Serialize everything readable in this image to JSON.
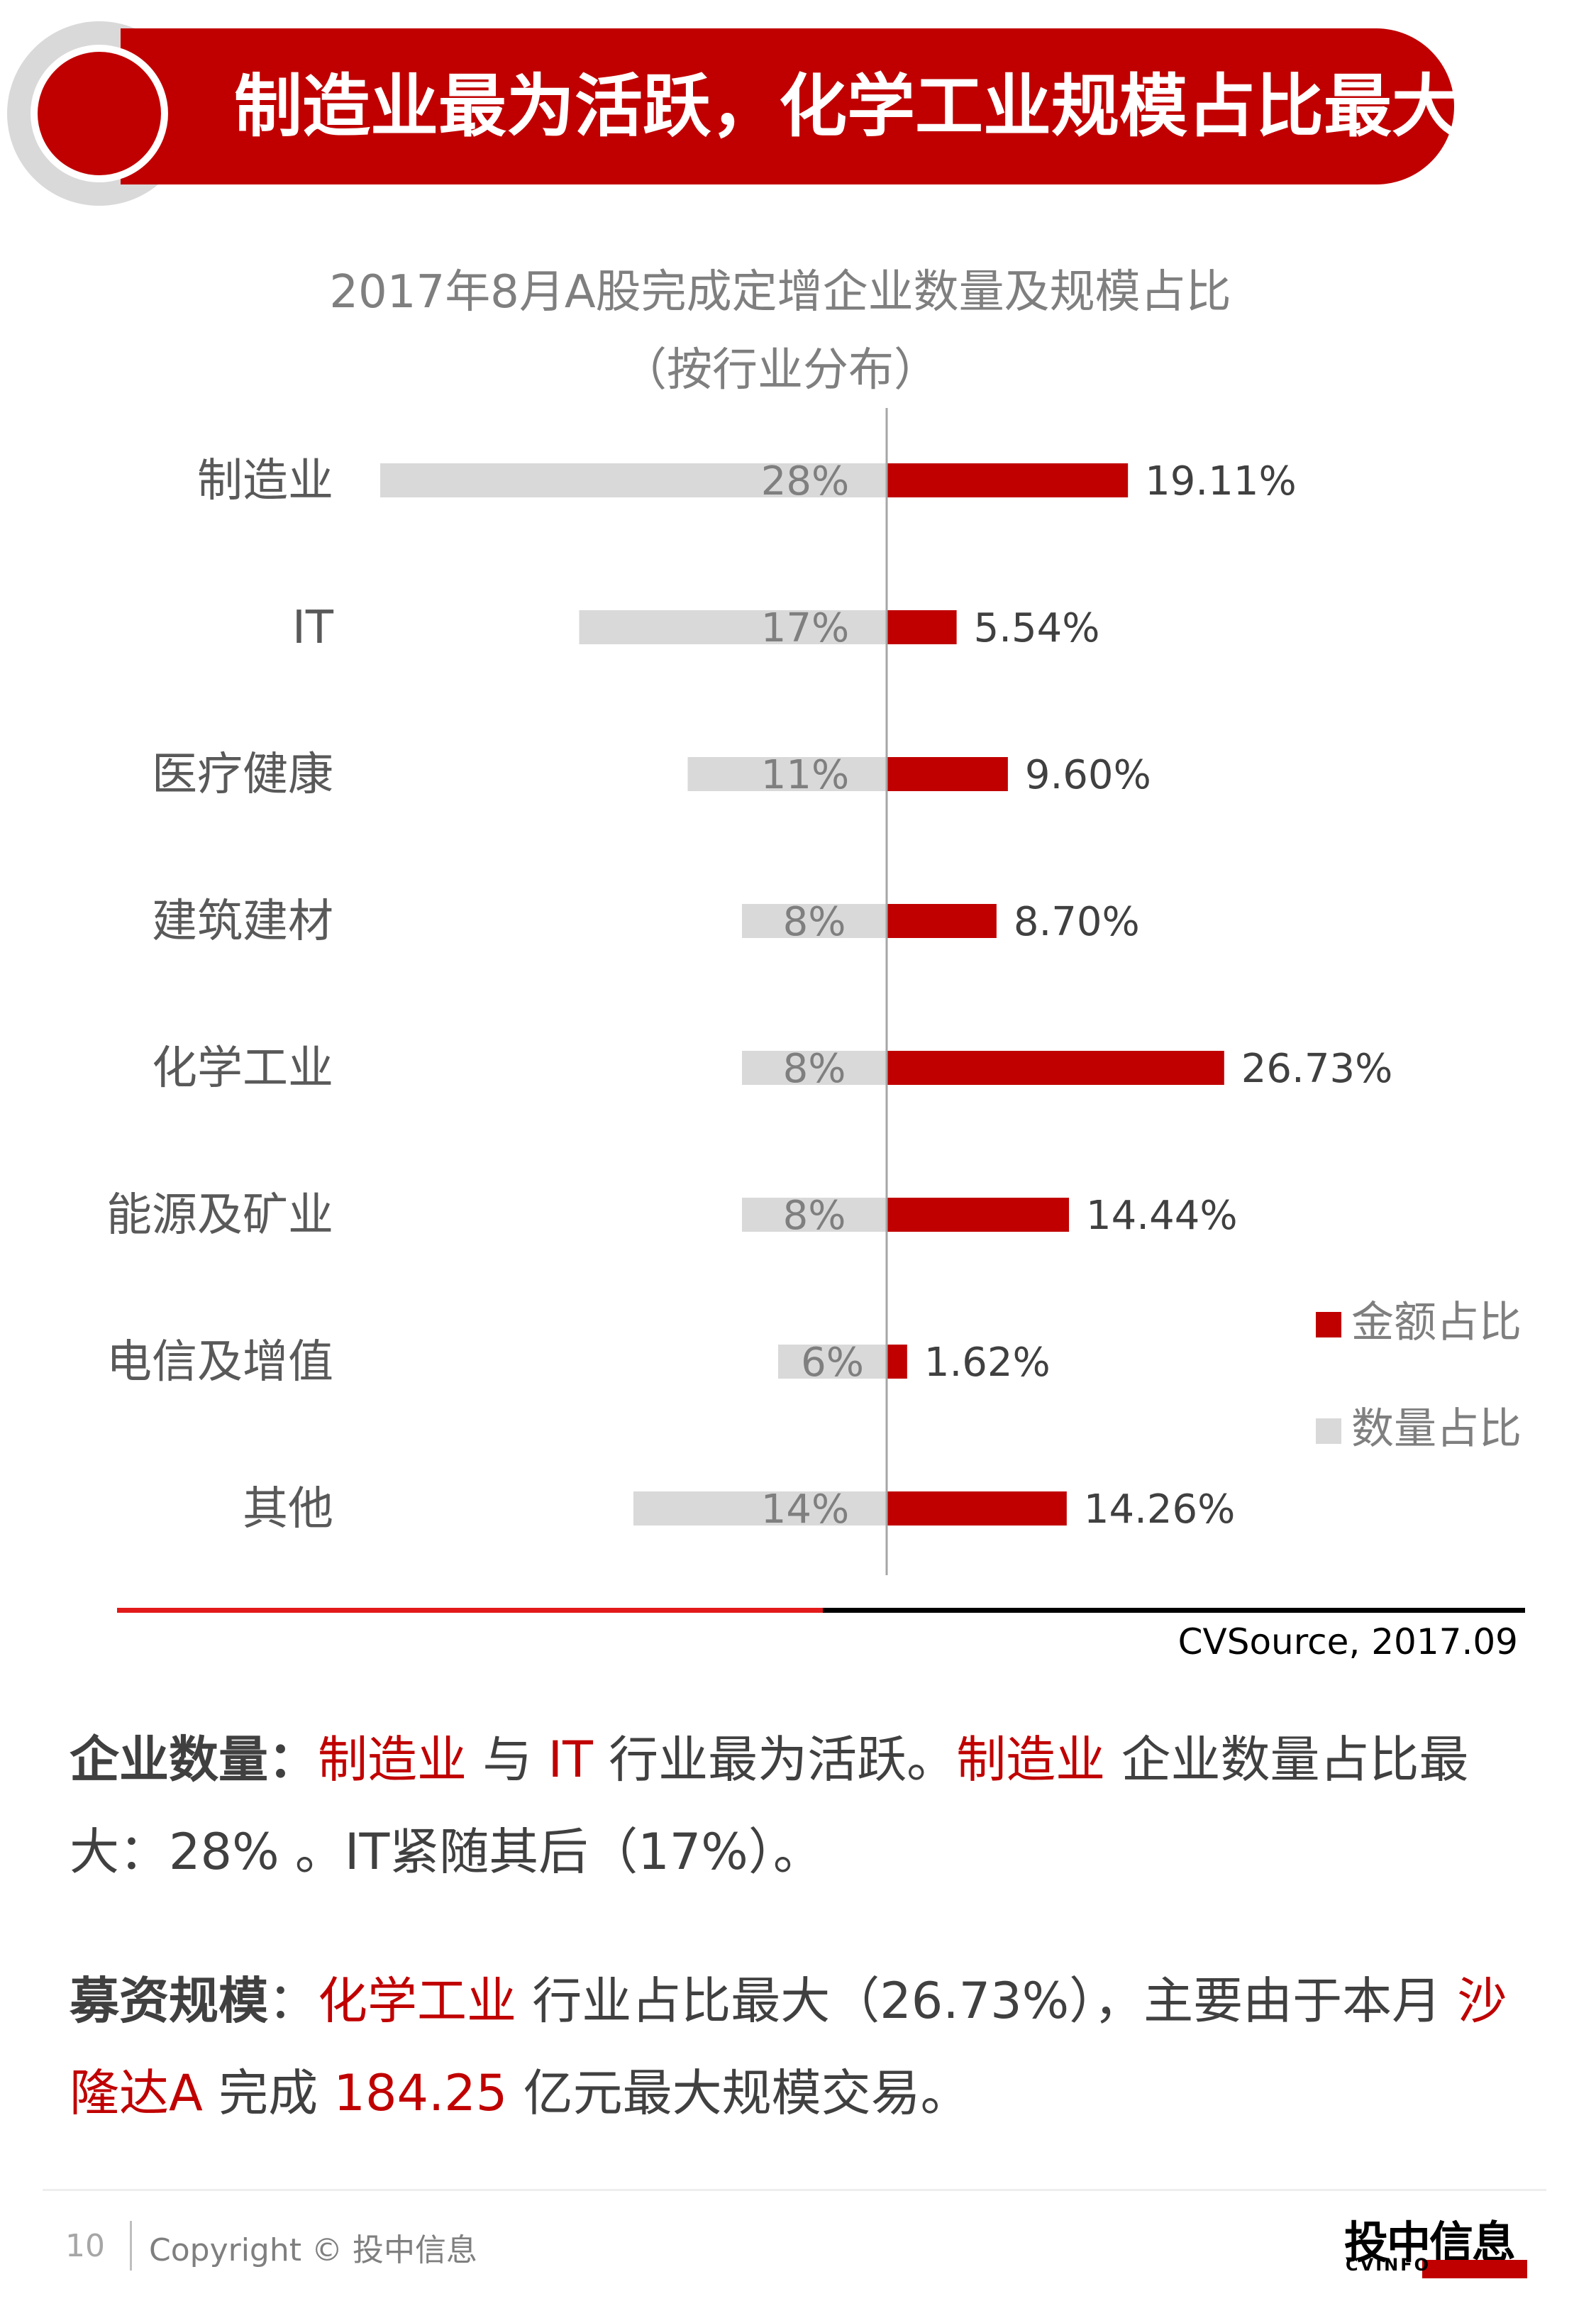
{
  "banner": {
    "title": "制造业最为活跃，化学工业规模占比最大"
  },
  "chart_title": {
    "line1": "2017年8月A股完成定增企业数量及规模占比",
    "line2": "（按行业分布）"
  },
  "chart_data": {
    "type": "bar",
    "orientation": "horizontal-diverging",
    "categories": [
      "制造业",
      "IT",
      "医疗健康",
      "建筑建材",
      "化学工业",
      "能源及矿业",
      "电信及增值",
      "其他"
    ],
    "series": [
      {
        "name": "数量占比",
        "values": [
          28,
          17,
          11,
          8,
          8,
          8,
          6,
          14
        ],
        "labels": [
          "28%",
          "17%",
          "11%",
          "8%",
          "8%",
          "8%",
          "6%",
          "14%"
        ],
        "color": "#d9d9d9",
        "direction": "left"
      },
      {
        "name": "金额占比",
        "values": [
          19.11,
          5.54,
          9.6,
          8.7,
          26.73,
          14.44,
          1.62,
          14.26
        ],
        "labels": [
          "19.11%",
          "5.54%",
          "9.60%",
          "8.70%",
          "26.73%",
          "14.44%",
          "1.62%",
          "14.26%"
        ],
        "color": "#c00000",
        "direction": "right"
      }
    ],
    "legend": [
      "金额占比",
      "数量占比"
    ],
    "legend_position": "right",
    "source": "CVSource, 2017.09"
  },
  "colors": {
    "accent": "#c00000",
    "gray_bar": "#d9d9d9",
    "text": "#595959"
  },
  "legend": {
    "amount": "金额占比",
    "count": "数量占比"
  },
  "source": "CVSource, 2017.09",
  "para1": {
    "label": "企业数量：",
    "hl1": "制造业",
    "t1": " 与 ",
    "hl2": "IT",
    "t2": " 行业最为活跃。",
    "hl3": "制造业",
    "t3": " 企业数量占比最大：28% 。IT紧随其后（17%）。"
  },
  "para2": {
    "label": "募资规模",
    "t0": "：",
    "hl1": "化学工业",
    "t1": " 行业占比最大（26.73%），主要由于本月 ",
    "hl2": "沙隆达A",
    "t2": " 完成 ",
    "hl3": "184.25",
    "t3": " 亿元最大规模交易。"
  },
  "footer": {
    "page": "10",
    "copyright": "Copyright © 投中信息"
  },
  "logo": {
    "cn": "投中信息",
    "en": "CVINFO"
  }
}
